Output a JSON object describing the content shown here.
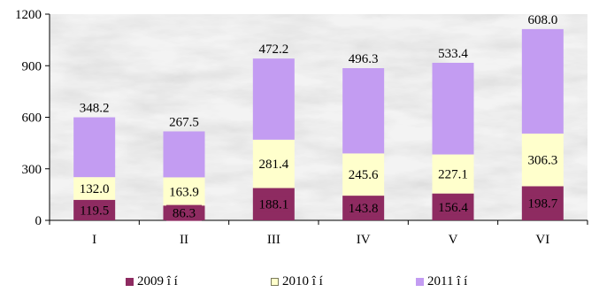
{
  "chart_data": {
    "type": "bar",
    "stacked": true,
    "categories": [
      "I",
      "II",
      "III",
      "IV",
      "V",
      "VI"
    ],
    "series": [
      {
        "name": "2009 î í",
        "color": "#8e2b61",
        "values": [
          119.5,
          86.3,
          188.1,
          143.8,
          156.4,
          198.7
        ]
      },
      {
        "name": "2010 î í",
        "color": "#ffffcc",
        "values": [
          132.0,
          163.9,
          281.4,
          245.6,
          227.1,
          306.3
        ]
      },
      {
        "name": "2011 î í",
        "color": "#c39cf2",
        "values": [
          348.2,
          267.5,
          472.2,
          496.3,
          533.4,
          608.0
        ]
      }
    ],
    "data_labels": [
      [
        "119.5",
        "86.3",
        "188.1",
        "143.8",
        "156.4",
        "198.7"
      ],
      [
        "132.0",
        "163.9",
        "281.4",
        "245.6",
        "227.1",
        "306.3"
      ],
      [
        "348.2",
        "267.5",
        "472.2",
        "496.3",
        "533.4",
        "608.0"
      ]
    ],
    "ylim": [
      0,
      1200
    ],
    "yticks": [
      0,
      300,
      600,
      900,
      1200
    ],
    "title": "",
    "xlabel": "",
    "ylabel": "",
    "legend_position": "bottom",
    "plot_background": "grey marble texture"
  }
}
